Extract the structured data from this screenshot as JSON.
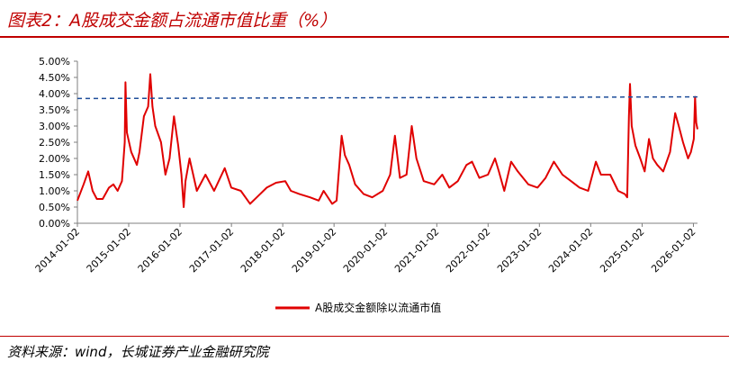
{
  "header": {
    "title": "图表2：A股成交金额占流通市值比重（%）"
  },
  "footer": {
    "source": "资料来源：wind，长城证券产业金融研究院"
  },
  "chart_data": {
    "type": "line",
    "title": "图表2：A股成交金额占流通市值比重（%）",
    "xlabel": "",
    "ylabel": "",
    "ylim": [
      0,
      5
    ],
    "xlim": [
      "2014-01-02",
      "2026-01-31"
    ],
    "y_ticks": [
      "0.00%",
      "0.50%",
      "1.00%",
      "1.50%",
      "2.00%",
      "2.50%",
      "3.00%",
      "3.50%",
      "4.00%",
      "4.50%",
      "5.00%"
    ],
    "x_ticks": [
      "2014-01-02",
      "2015-01-02",
      "2016-01-02",
      "2017-01-02",
      "2018-01-02",
      "2019-01-02",
      "2020-01-02",
      "2021-01-02",
      "2022-01-02",
      "2023-01-02",
      "2024-01-02",
      "2025-01-02",
      "2026-01-02"
    ],
    "legend": {
      "position": "bottom"
    },
    "grid": false,
    "series": [
      {
        "name": "A股成交金额除以流通市值",
        "color": "#e00000",
        "points": [
          [
            "2014-01-02",
            0.7
          ],
          [
            "2014-02-15",
            1.2
          ],
          [
            "2014-03-20",
            1.6
          ],
          [
            "2014-04-20",
            1.0
          ],
          [
            "2014-05-20",
            0.75
          ],
          [
            "2014-07-01",
            0.75
          ],
          [
            "2014-08-15",
            1.1
          ],
          [
            "2014-09-15",
            1.2
          ],
          [
            "2014-10-15",
            1.0
          ],
          [
            "2014-11-15",
            1.3
          ],
          [
            "2014-12-05",
            2.5
          ],
          [
            "2014-12-10",
            4.35
          ],
          [
            "2014-12-20",
            2.8
          ],
          [
            "2015-01-20",
            2.2
          ],
          [
            "2015-03-01",
            1.8
          ],
          [
            "2015-03-20",
            2.2
          ],
          [
            "2015-04-20",
            3.3
          ],
          [
            "2015-05-20",
            3.6
          ],
          [
            "2015-06-05",
            4.6
          ],
          [
            "2015-06-20",
            3.6
          ],
          [
            "2015-07-10",
            3.0
          ],
          [
            "2015-08-20",
            2.5
          ],
          [
            "2015-09-20",
            1.5
          ],
          [
            "2015-10-20",
            2.0
          ],
          [
            "2015-11-20",
            3.3
          ],
          [
            "2015-12-20",
            2.4
          ],
          [
            "2016-01-12",
            1.5
          ],
          [
            "2016-01-28",
            0.5
          ],
          [
            "2016-02-10",
            1.3
          ],
          [
            "2016-03-10",
            2.0
          ],
          [
            "2016-05-01",
            1.0
          ],
          [
            "2016-07-01",
            1.5
          ],
          [
            "2016-09-01",
            1.0
          ],
          [
            "2016-11-15",
            1.7
          ],
          [
            "2017-01-01",
            1.1
          ],
          [
            "2017-03-10",
            1.0
          ],
          [
            "2017-05-15",
            0.6
          ],
          [
            "2017-07-01",
            0.8
          ],
          [
            "2017-09-10",
            1.1
          ],
          [
            "2017-11-15",
            1.25
          ],
          [
            "2018-01-20",
            1.3
          ],
          [
            "2018-03-01",
            1.0
          ],
          [
            "2018-05-01",
            0.9
          ],
          [
            "2018-07-15",
            0.8
          ],
          [
            "2018-09-15",
            0.7
          ],
          [
            "2018-10-20",
            1.0
          ],
          [
            "2018-12-20",
            0.6
          ],
          [
            "2019-01-20",
            0.7
          ],
          [
            "2019-02-25",
            2.7
          ],
          [
            "2019-03-20",
            2.1
          ],
          [
            "2019-04-20",
            1.8
          ],
          [
            "2019-06-01",
            1.2
          ],
          [
            "2019-08-01",
            0.9
          ],
          [
            "2019-10-01",
            0.8
          ],
          [
            "2019-12-15",
            1.0
          ],
          [
            "2020-02-05",
            1.5
          ],
          [
            "2020-03-10",
            2.7
          ],
          [
            "2020-04-15",
            1.4
          ],
          [
            "2020-06-01",
            1.5
          ],
          [
            "2020-07-08",
            3.0
          ],
          [
            "2020-08-10",
            2.0
          ],
          [
            "2020-10-01",
            1.3
          ],
          [
            "2020-12-15",
            1.2
          ],
          [
            "2021-02-10",
            1.5
          ],
          [
            "2021-04-01",
            1.1
          ],
          [
            "2021-06-01",
            1.3
          ],
          [
            "2021-08-01",
            1.8
          ],
          [
            "2021-09-10",
            1.9
          ],
          [
            "2021-11-01",
            1.4
          ],
          [
            "2022-01-01",
            1.5
          ],
          [
            "2022-02-20",
            2.0
          ],
          [
            "2022-03-20",
            1.6
          ],
          [
            "2022-04-27",
            1.0
          ],
          [
            "2022-06-15",
            1.9
          ],
          [
            "2022-08-01",
            1.6
          ],
          [
            "2022-10-15",
            1.2
          ],
          [
            "2022-12-20",
            1.1
          ],
          [
            "2023-02-15",
            1.4
          ],
          [
            "2023-04-15",
            1.9
          ],
          [
            "2023-06-15",
            1.5
          ],
          [
            "2023-08-15",
            1.3
          ],
          [
            "2023-10-15",
            1.1
          ],
          [
            "2023-12-15",
            1.0
          ],
          [
            "2024-02-08",
            1.9
          ],
          [
            "2024-03-15",
            1.5
          ],
          [
            "2024-05-20",
            1.5
          ],
          [
            "2024-07-15",
            1.0
          ],
          [
            "2024-09-01",
            0.9
          ],
          [
            "2024-09-18",
            0.8
          ],
          [
            "2024-09-30",
            3.3
          ],
          [
            "2024-10-08",
            4.3
          ],
          [
            "2024-10-20",
            3.0
          ],
          [
            "2024-11-15",
            2.4
          ],
          [
            "2024-12-20",
            2.0
          ],
          [
            "2025-01-20",
            1.6
          ],
          [
            "2025-02-20",
            2.6
          ],
          [
            "2025-03-20",
            2.0
          ],
          [
            "2025-04-20",
            1.8
          ],
          [
            "2025-06-01",
            1.6
          ],
          [
            "2025-07-20",
            2.2
          ],
          [
            "2025-08-25",
            3.4
          ],
          [
            "2025-09-20",
            3.0
          ],
          [
            "2025-10-20",
            2.5
          ],
          [
            "2025-11-25",
            2.0
          ],
          [
            "2025-12-15",
            2.2
          ],
          [
            "2026-01-05",
            2.6
          ],
          [
            "2026-01-14",
            3.9
          ],
          [
            "2026-01-22",
            3.1
          ],
          [
            "2026-01-31",
            2.9
          ]
        ]
      },
      {
        "name": "",
        "style": "dashed",
        "color": "#1f4e9a",
        "points": [
          [
            "2014-01-02",
            3.85
          ],
          [
            "2026-01-31",
            3.9
          ]
        ]
      }
    ]
  }
}
